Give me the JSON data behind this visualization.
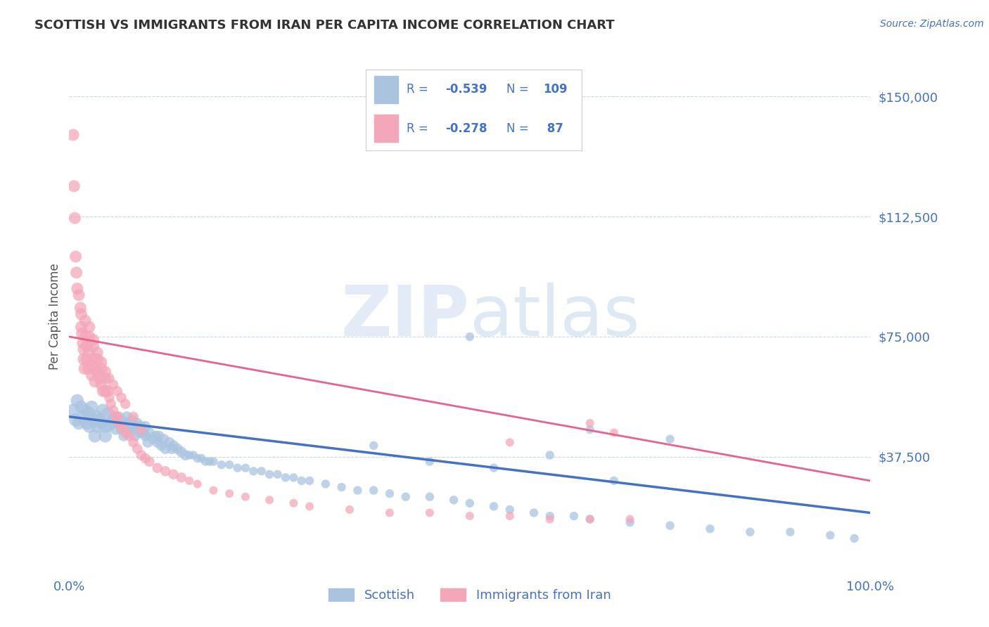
{
  "title": "SCOTTISH VS IMMIGRANTS FROM IRAN PER CAPITA INCOME CORRELATION CHART",
  "source": "Source: ZipAtlas.com",
  "ylabel": "Per Capita Income",
  "watermark_zip": "ZIP",
  "watermark_atlas": "atlas",
  "xlim": [
    0,
    1.0
  ],
  "ylim": [
    0,
    162500
  ],
  "yticks": [
    0,
    37500,
    75000,
    112500,
    150000
  ],
  "ytick_labels": [
    "",
    "$37,500",
    "$75,000",
    "$112,500",
    "$150,000"
  ],
  "xtick_labels": [
    "0.0%",
    "100.0%"
  ],
  "series": [
    {
      "name": "Scottish",
      "scatter_color": "#aac4e0",
      "line_color": "#4472c4",
      "R": -0.539,
      "N": 109
    },
    {
      "name": "Immigrants from Iran",
      "scatter_color": "#f4a7b9",
      "line_color": "#e8638c",
      "R": -0.278,
      "N": 87
    }
  ],
  "legend_text_color": "#4472c4",
  "legend_R_color": "#4472c4",
  "legend_N_color": "#4472c4",
  "background_color": "#ffffff",
  "grid_color": "#c8d8e8",
  "title_color": "#333333",
  "axis_label_color": "#4472c4",
  "scatter_blue_x": [
    0.005,
    0.008,
    0.01,
    0.012,
    0.015,
    0.018,
    0.02,
    0.022,
    0.025,
    0.025,
    0.028,
    0.03,
    0.032,
    0.035,
    0.035,
    0.038,
    0.04,
    0.042,
    0.045,
    0.045,
    0.048,
    0.05,
    0.052,
    0.055,
    0.055,
    0.058,
    0.06,
    0.062,
    0.065,
    0.065,
    0.068,
    0.07,
    0.072,
    0.075,
    0.075,
    0.078,
    0.08,
    0.082,
    0.085,
    0.085,
    0.088,
    0.09,
    0.092,
    0.095,
    0.095,
    0.098,
    0.1,
    0.105,
    0.108,
    0.11,
    0.112,
    0.115,
    0.118,
    0.12,
    0.125,
    0.128,
    0.13,
    0.135,
    0.14,
    0.145,
    0.15,
    0.155,
    0.16,
    0.165,
    0.17,
    0.175,
    0.18,
    0.19,
    0.2,
    0.21,
    0.22,
    0.23,
    0.24,
    0.25,
    0.26,
    0.27,
    0.28,
    0.29,
    0.3,
    0.32,
    0.34,
    0.36,
    0.38,
    0.4,
    0.42,
    0.45,
    0.48,
    0.5,
    0.53,
    0.55,
    0.58,
    0.6,
    0.63,
    0.65,
    0.7,
    0.75,
    0.8,
    0.85,
    0.9,
    0.95,
    0.98,
    0.65,
    0.5,
    0.75,
    0.6,
    0.38,
    0.45,
    0.53,
    0.68
  ],
  "scatter_blue_y": [
    52000,
    49000,
    55000,
    48000,
    53000,
    50000,
    52000,
    48000,
    51000,
    47000,
    53000,
    49000,
    44000,
    50000,
    47000,
    49000,
    48000,
    52000,
    47000,
    44000,
    51000,
    47000,
    49000,
    50000,
    48000,
    46000,
    48000,
    50000,
    49000,
    46000,
    44000,
    48000,
    50000,
    47000,
    45000,
    49000,
    47000,
    44000,
    48000,
    47000,
    45000,
    47000,
    45000,
    47000,
    44000,
    42000,
    45000,
    43000,
    44000,
    42000,
    44000,
    41000,
    43000,
    40000,
    42000,
    40000,
    41000,
    40000,
    39000,
    38000,
    38000,
    38000,
    37000,
    37000,
    36000,
    36000,
    36000,
    35000,
    35000,
    34000,
    34000,
    33000,
    33000,
    32000,
    32000,
    31000,
    31000,
    30000,
    30000,
    29000,
    28000,
    27000,
    27000,
    26000,
    25000,
    25000,
    24000,
    23000,
    22000,
    21000,
    20000,
    19000,
    19000,
    18000,
    17000,
    16000,
    15000,
    14000,
    14000,
    13000,
    12000,
    46000,
    75000,
    43000,
    38000,
    41000,
    36000,
    34000,
    30000
  ],
  "scatter_pink_x": [
    0.005,
    0.006,
    0.007,
    0.008,
    0.009,
    0.01,
    0.012,
    0.014,
    0.015,
    0.015,
    0.016,
    0.017,
    0.018,
    0.018,
    0.019,
    0.02,
    0.02,
    0.022,
    0.022,
    0.024,
    0.025,
    0.025,
    0.027,
    0.028,
    0.03,
    0.03,
    0.032,
    0.032,
    0.035,
    0.035,
    0.038,
    0.04,
    0.04,
    0.042,
    0.045,
    0.045,
    0.048,
    0.05,
    0.052,
    0.055,
    0.058,
    0.06,
    0.062,
    0.065,
    0.068,
    0.07,
    0.075,
    0.08,
    0.085,
    0.09,
    0.095,
    0.1,
    0.11,
    0.12,
    0.13,
    0.14,
    0.15,
    0.16,
    0.18,
    0.2,
    0.22,
    0.25,
    0.28,
    0.3,
    0.35,
    0.4,
    0.45,
    0.5,
    0.55,
    0.6,
    0.65,
    0.7,
    0.025,
    0.03,
    0.035,
    0.04,
    0.045,
    0.05,
    0.055,
    0.06,
    0.065,
    0.07,
    0.08,
    0.09,
    0.65,
    0.68,
    0.55
  ],
  "scatter_pink_y": [
    138000,
    122000,
    112000,
    100000,
    95000,
    90000,
    88000,
    84000,
    82000,
    78000,
    76000,
    73000,
    71000,
    68000,
    65000,
    80000,
    75000,
    72000,
    68000,
    65000,
    75000,
    70000,
    66000,
    63000,
    72000,
    68000,
    65000,
    61000,
    68000,
    64000,
    62000,
    65000,
    60000,
    58000,
    62000,
    58000,
    58000,
    56000,
    54000,
    52000,
    50000,
    50000,
    48000,
    47000,
    46000,
    45000,
    44000,
    42000,
    40000,
    38000,
    37000,
    36000,
    34000,
    33000,
    32000,
    31000,
    30000,
    29000,
    27000,
    26000,
    25000,
    24000,
    23000,
    22000,
    21000,
    20000,
    20000,
    19000,
    19000,
    18000,
    18000,
    18000,
    78000,
    74000,
    70000,
    67000,
    64000,
    62000,
    60000,
    58000,
    56000,
    54000,
    50000,
    46000,
    48000,
    45000,
    42000
  ]
}
